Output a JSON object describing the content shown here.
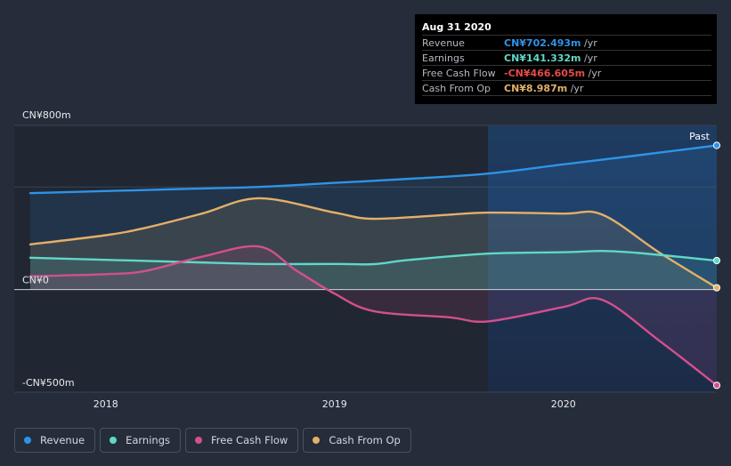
{
  "chart_data": {
    "type": "area",
    "title": "",
    "ylabel": "",
    "xlabel": "",
    "ylim": [
      -500,
      800
    ],
    "y_ticks": [
      {
        "value": 800,
        "label": "CN¥800m"
      },
      {
        "value": 0,
        "label": "CN¥0"
      },
      {
        "value": -500,
        "label": "-CN¥500m"
      }
    ],
    "x_range": [
      2017.6,
      2020.67
    ],
    "x_ticks": [
      {
        "value": 2018,
        "label": "2018"
      },
      {
        "value": 2019,
        "label": "2019"
      },
      {
        "value": 2020,
        "label": "2020"
      }
    ],
    "past_start": 2019.67,
    "past_label": "Past",
    "series": [
      {
        "name": "Revenue",
        "color": "#2e93e8",
        "points": [
          [
            2017.67,
            470
          ],
          [
            2018.0,
            480
          ],
          [
            2018.33,
            490
          ],
          [
            2018.67,
            500
          ],
          [
            2019.0,
            520
          ],
          [
            2019.33,
            540
          ],
          [
            2019.67,
            565
          ],
          [
            2020.0,
            610
          ],
          [
            2020.33,
            655
          ],
          [
            2020.67,
            702.5
          ]
        ]
      },
      {
        "name": "Earnings",
        "color": "#5fd8c7",
        "points": [
          [
            2017.67,
            155
          ],
          [
            2018.0,
            145
          ],
          [
            2018.33,
            135
          ],
          [
            2018.67,
            125
          ],
          [
            2019.0,
            125
          ],
          [
            2019.17,
            124
          ],
          [
            2019.33,
            145
          ],
          [
            2019.67,
            175
          ],
          [
            2020.0,
            182
          ],
          [
            2020.17,
            188
          ],
          [
            2020.33,
            178
          ],
          [
            2020.67,
            141.3
          ]
        ]
      },
      {
        "name": "Free Cash Flow",
        "color": "#d2508c",
        "points": [
          [
            2017.67,
            65
          ],
          [
            2018.0,
            75
          ],
          [
            2018.17,
            90
          ],
          [
            2018.42,
            160
          ],
          [
            2018.67,
            210
          ],
          [
            2018.83,
            95
          ],
          [
            2019.0,
            -20
          ],
          [
            2019.17,
            -105
          ],
          [
            2019.5,
            -135
          ],
          [
            2019.67,
            -155
          ],
          [
            2020.0,
            -85
          ],
          [
            2020.17,
            -50
          ],
          [
            2020.42,
            -250
          ],
          [
            2020.67,
            -466.6
          ]
        ]
      },
      {
        "name": "Cash From Op",
        "color": "#e3b06a",
        "points": [
          [
            2017.67,
            220
          ],
          [
            2018.0,
            265
          ],
          [
            2018.17,
            300
          ],
          [
            2018.42,
            370
          ],
          [
            2018.67,
            445
          ],
          [
            2019.0,
            375
          ],
          [
            2019.17,
            345
          ],
          [
            2019.5,
            365
          ],
          [
            2019.67,
            375
          ],
          [
            2020.0,
            370
          ],
          [
            2020.17,
            365
          ],
          [
            2020.42,
            180
          ],
          [
            2020.67,
            9
          ]
        ]
      }
    ]
  },
  "tooltip": {
    "date": "Aug 31 2020",
    "unit": " /yr",
    "rows": [
      {
        "label": "Revenue",
        "value": "CN¥702.493m",
        "color": "#2e93e8"
      },
      {
        "label": "Earnings",
        "value": "CN¥141.332m",
        "color": "#5fd8c7"
      },
      {
        "label": "Free Cash Flow",
        "value": "-CN¥466.605m",
        "color": "#e84a4a"
      },
      {
        "label": "Cash From Op",
        "value": "CN¥8.987m",
        "color": "#e3b06a"
      }
    ]
  },
  "legend": [
    {
      "label": "Revenue",
      "color": "#2e93e8"
    },
    {
      "label": "Earnings",
      "color": "#5fd8c7"
    },
    {
      "label": "Free Cash Flow",
      "color": "#d2508c"
    },
    {
      "label": "Cash From Op",
      "color": "#e3b06a"
    }
  ]
}
